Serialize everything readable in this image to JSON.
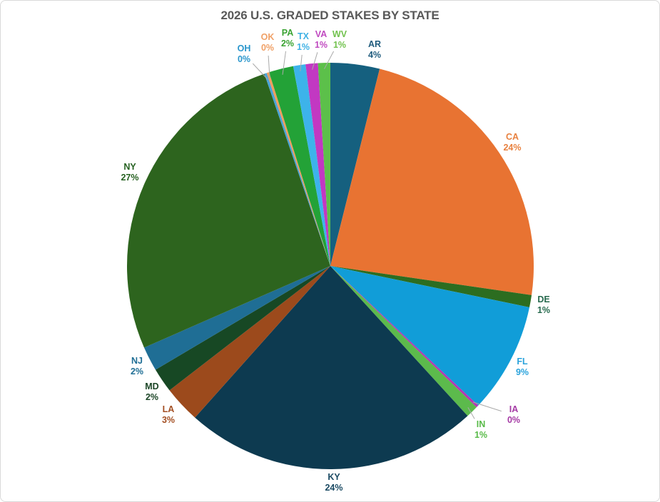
{
  "title": "2026 U.S. GRADED STAKES BY STATE",
  "styles": {
    "title_color": "#595959",
    "background": "#ffffff",
    "border_color": "#d9d9d9",
    "leader_line_color": "#a9a9a9"
  },
  "chart_data": {
    "type": "pie",
    "title": "2026 U.S. GRADED STAKES BY STATE",
    "order": "alphabetical, clockwise from 12 o'clock",
    "label_style": "state abbreviation + percent, outside slices, colored to match slice",
    "slices": [
      {
        "state": "AR",
        "percent": "4%",
        "value": 4,
        "color": "#15607f",
        "label_color": "#1f5b7d"
      },
      {
        "state": "CA",
        "percent": "24%",
        "value": 24,
        "color": "#e87332",
        "label_color": "#e8813f"
      },
      {
        "state": "DE",
        "percent": "1%",
        "value": 1,
        "color": "#2c6d20",
        "label_color": "#276a4e"
      },
      {
        "state": "FL",
        "percent": "9%",
        "value": 9,
        "color": "#119dd8",
        "label_color": "#2aa3dc"
      },
      {
        "state": "IA",
        "percent": "0%",
        "value": 0,
        "color": "#b438b4",
        "label_color": "#a438a4"
      },
      {
        "state": "IN",
        "percent": "1%",
        "value": 1,
        "color": "#5cba4c",
        "label_color": "#58ba48"
      },
      {
        "state": "KY",
        "percent": "24%",
        "value": 24,
        "color": "#0d3a50",
        "label_color": "#1b4a63"
      },
      {
        "state": "LA",
        "percent": "3%",
        "value": 3,
        "color": "#9c4a1c",
        "label_color": "#a34e22"
      },
      {
        "state": "MD",
        "percent": "2%",
        "value": 2,
        "color": "#174824",
        "label_color": "#1b4526"
      },
      {
        "state": "NJ",
        "percent": "2%",
        "value": 2,
        "color": "#1f6e95",
        "label_color": "#1f6e95"
      },
      {
        "state": "NY",
        "percent": "27%",
        "value": 27,
        "color": "#2d641e",
        "label_color": "#266121"
      },
      {
        "state": "OH",
        "percent": "0%",
        "value": 0,
        "color": "#4aa3d8",
        "label_color": "#2a96cc"
      },
      {
        "state": "OK",
        "percent": "0%",
        "value": 0,
        "color": "#ef9e5e",
        "label_color": "#f0a066"
      },
      {
        "state": "PA",
        "percent": "2%",
        "value": 2,
        "color": "#23a237",
        "label_color": "#3aa332"
      },
      {
        "state": "TX",
        "percent": "1%",
        "value": 1,
        "color": "#3db3ea",
        "label_color": "#3eb1e4"
      },
      {
        "state": "VA",
        "percent": "1%",
        "value": 1,
        "color": "#c238c2",
        "label_color": "#c04ac0"
      },
      {
        "state": "WV",
        "percent": "1%",
        "value": 1,
        "color": "#5cc04a",
        "label_color": "#72c24e"
      }
    ]
  }
}
